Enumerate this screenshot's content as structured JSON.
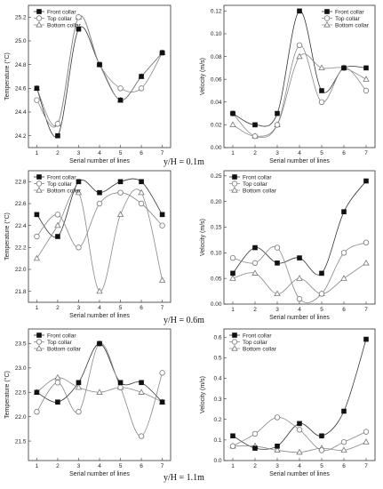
{
  "captions": [
    "y/H = 0.1m",
    "y/H = 0.6m",
    "y/H = 1.1m"
  ],
  "chart_data": [
    {
      "type": "line",
      "xlabel": "Serial number of lines",
      "ylabel": "Temperature (°C)",
      "x": [
        1,
        2,
        3,
        4,
        5,
        6,
        7
      ],
      "xticks": [
        "1",
        "2",
        "3",
        "4",
        "5",
        "6",
        "7"
      ],
      "ylim": [
        24.1,
        25.3
      ],
      "yticks": [
        "24.2",
        "24.4",
        "24.6",
        "24.8",
        "25.0",
        "25.2"
      ],
      "legend": "top-left",
      "series": [
        {
          "name": "Front collar",
          "marker": "square",
          "values": [
            24.6,
            24.2,
            25.1,
            24.8,
            24.5,
            24.7,
            24.9
          ]
        },
        {
          "name": "Top collar",
          "marker": "circle",
          "values": [
            24.5,
            24.3,
            25.2,
            24.8,
            24.6,
            24.6,
            24.9
          ]
        },
        {
          "name": "Bottom collar",
          "marker": "triangle",
          "values": [
            24.6,
            24.3,
            25.2,
            24.8,
            24.5,
            24.7,
            24.9
          ]
        }
      ]
    },
    {
      "type": "line",
      "xlabel": "Serial number of lines",
      "ylabel": "Velocity (m/s)",
      "x": [
        1,
        2,
        3,
        4,
        5,
        6,
        7
      ],
      "xticks": [
        "1",
        "2",
        "3",
        "4",
        "5",
        "6",
        "7"
      ],
      "ylim": [
        0,
        0.125
      ],
      "yticks": [
        "0.00",
        "0.02",
        "0.04",
        "0.06",
        "0.08",
        "0.10",
        "0.12"
      ],
      "legend": "top-right",
      "series": [
        {
          "name": "Front collar",
          "marker": "square",
          "values": [
            0.03,
            0.02,
            0.03,
            0.12,
            0.05,
            0.07,
            0.07
          ]
        },
        {
          "name": "Top collar",
          "marker": "circle",
          "values": [
            0.03,
            0.01,
            0.02,
            0.09,
            0.04,
            0.07,
            0.05
          ]
        },
        {
          "name": "Bottom collar",
          "marker": "triangle",
          "values": [
            0.02,
            0.01,
            0.02,
            0.08,
            0.07,
            0.07,
            0.06
          ]
        }
      ]
    },
    {
      "type": "line",
      "xlabel": "Serial number of lines",
      "ylabel": "Temperature (°C)",
      "x": [
        1,
        2,
        3,
        4,
        5,
        6,
        7
      ],
      "xticks": [
        "1",
        "2",
        "3",
        "4",
        "5",
        "6",
        "7"
      ],
      "ylim": [
        21.7,
        22.9
      ],
      "yticks": [
        "21.8",
        "22.0",
        "22.2",
        "22.4",
        "22.6",
        "22.8"
      ],
      "legend": "top-left",
      "series": [
        {
          "name": "Front collar",
          "marker": "square",
          "values": [
            22.5,
            22.3,
            22.8,
            22.7,
            22.8,
            22.8,
            22.5
          ]
        },
        {
          "name": "Top collar",
          "marker": "circle",
          "values": [
            22.3,
            22.5,
            22.2,
            22.6,
            22.7,
            22.6,
            22.4
          ]
        },
        {
          "name": "Bottom collar",
          "marker": "triangle",
          "values": [
            22.1,
            22.4,
            22.7,
            21.8,
            22.5,
            22.7,
            21.9
          ]
        }
      ]
    },
    {
      "type": "line",
      "xlabel": "Serial number of lines",
      "ylabel": "Velocity (m/s)",
      "x": [
        1,
        2,
        3,
        4,
        5,
        6,
        7
      ],
      "xticks": [
        "1",
        "2",
        "3",
        "4",
        "5",
        "6",
        "7"
      ],
      "ylim": [
        0,
        0.26
      ],
      "yticks": [
        "0.00",
        "0.05",
        "0.10",
        "0.15",
        "0.20",
        "0.25"
      ],
      "legend": "top-left",
      "series": [
        {
          "name": "Front collar",
          "marker": "square",
          "values": [
            0.06,
            0.11,
            0.08,
            0.09,
            0.06,
            0.18,
            0.24
          ]
        },
        {
          "name": "Top collar",
          "marker": "circle",
          "values": [
            0.09,
            0.08,
            0.11,
            0.01,
            0.02,
            0.1,
            0.12
          ]
        },
        {
          "name": "Bottom collar",
          "marker": "triangle",
          "values": [
            0.05,
            0.06,
            0.02,
            0.05,
            0.02,
            0.05,
            0.08
          ]
        }
      ]
    },
    {
      "type": "line",
      "xlabel": "Serial number of lines",
      "ylabel": "Temperature (°C)",
      "x": [
        1,
        2,
        3,
        4,
        5,
        6,
        7
      ],
      "xticks": [
        "1",
        "2",
        "3",
        "4",
        "5",
        "6",
        "7"
      ],
      "ylim": [
        21.1,
        23.8
      ],
      "yticks": [
        "21.5",
        "22.0",
        "22.5",
        "23.0",
        "23.5"
      ],
      "legend": "top-left",
      "series": [
        {
          "name": "Front collar",
          "marker": "square",
          "values": [
            22.5,
            22.3,
            22.7,
            23.5,
            22.7,
            22.7,
            22.3
          ]
        },
        {
          "name": "Top collar",
          "marker": "circle",
          "values": [
            22.1,
            22.7,
            22.1,
            23.5,
            22.6,
            21.6,
            22.9
          ]
        },
        {
          "name": "Bottom collar",
          "marker": "triangle",
          "values": [
            22.5,
            22.8,
            22.6,
            22.5,
            22.6,
            22.5,
            22.3
          ]
        }
      ]
    },
    {
      "type": "line",
      "xlabel": "Serial number of lines",
      "ylabel": "Velocity (m/s)",
      "x": [
        1,
        2,
        3,
        4,
        5,
        6,
        7
      ],
      "xticks": [
        "1",
        "2",
        "3",
        "4",
        "5",
        "6",
        "7"
      ],
      "ylim": [
        0,
        0.64
      ],
      "yticks": [
        "0.0",
        "0.1",
        "0.2",
        "0.3",
        "0.4",
        "0.5",
        "0.6"
      ],
      "legend": "top-left",
      "series": [
        {
          "name": "Front collar",
          "marker": "square",
          "values": [
            0.12,
            0.06,
            0.07,
            0.18,
            0.12,
            0.24,
            0.59
          ]
        },
        {
          "name": "Top collar",
          "marker": "circle",
          "values": [
            0.07,
            0.13,
            0.21,
            0.15,
            0.05,
            0.09,
            0.14
          ]
        },
        {
          "name": "Bottom collar",
          "marker": "triangle",
          "values": [
            0.07,
            0.07,
            0.05,
            0.04,
            0.06,
            0.05,
            0.09
          ]
        }
      ]
    }
  ]
}
